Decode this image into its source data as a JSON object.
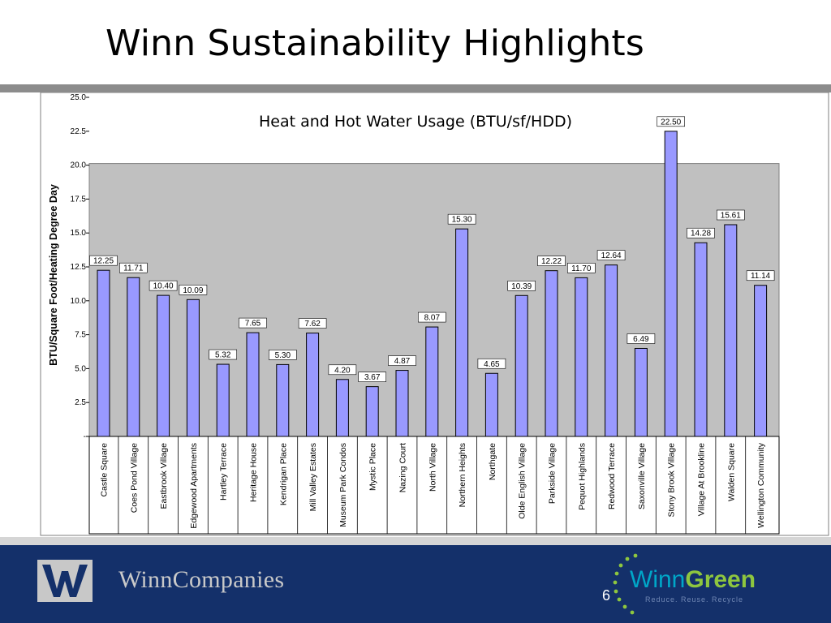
{
  "slide": {
    "title": "Winn Sustainability Highlights",
    "slide_number": "6"
  },
  "footer": {
    "company_name": "WinnCompanies",
    "brand_winn": "Winn",
    "brand_green": "Green",
    "tagline": "Reduce. Reuse. Recycle"
  },
  "chart_data": {
    "type": "bar",
    "title": "Heat and Hot Water Usage (BTU/sf/HDD)",
    "xlabel": "",
    "ylabel": "BTU/Square Foot/Heating Degree Day",
    "ylim": [
      0,
      25
    ],
    "yticks": [
      0,
      2.5,
      5,
      7.5,
      10,
      12.5,
      15,
      17.5,
      20,
      22.5,
      25
    ],
    "ytick_labels": [
      "-",
      "2.5",
      "5.0",
      "7.5",
      "10.0",
      "12.5",
      "15.0",
      "17.5",
      "20.0",
      "22.5",
      "25.0"
    ],
    "grid": false,
    "legend": "none",
    "bar_color": "#9999ff",
    "plot_background": "#c0c0c0",
    "categories": [
      "Castle Square",
      "Coes Pond Village",
      "Eastbrook Village",
      "Edgewood Apartments",
      "Hartley Terrace",
      "Heritage House",
      "Kendrigan Place",
      "Mill Valley Estates",
      "Museum Park Condos",
      "Mystic Place",
      "Nazing Court",
      "North Village",
      "Northern Heights",
      "Northgate",
      "Olde English Village",
      "Parkside Village",
      "Pequot Highlands",
      "Redwood Terrace",
      "Saxonville Village",
      "Stony Brook Village",
      "Village At Brookline",
      "Walden Square",
      "Wellington Community"
    ],
    "values": [
      12.25,
      11.71,
      10.4,
      10.09,
      5.32,
      7.65,
      5.3,
      7.62,
      4.2,
      3.67,
      4.87,
      8.07,
      15.3,
      4.65,
      10.39,
      12.22,
      11.7,
      12.64,
      6.49,
      22.5,
      14.28,
      15.61,
      11.14
    ],
    "data_labels": [
      "12.25",
      "11.71",
      "10.40",
      "10.09",
      "5.32",
      "7.65",
      "5.30",
      "7.62",
      "4.20",
      "3.67",
      "4.87",
      "8.07",
      "15.30",
      "4.65",
      "10.39",
      "12.22",
      "11.70",
      "12.64",
      "6.49",
      "22.50",
      "14.28",
      "15.61",
      "11.14"
    ]
  }
}
